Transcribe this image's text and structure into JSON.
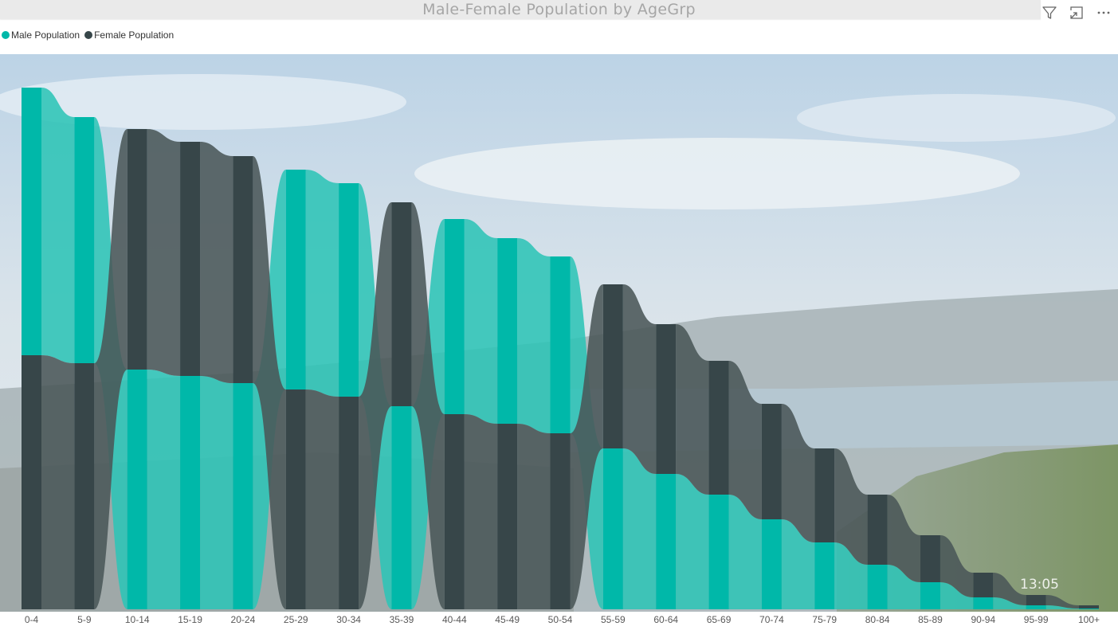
{
  "header": {
    "title": "Male-Female Population by AgeGrp",
    "icons": [
      "filter-icon",
      "focus-mode-icon",
      "more-options-icon"
    ]
  },
  "legend": {
    "items": [
      {
        "label": "Male Population",
        "color": "#00b8a9"
      },
      {
        "label": "Female Population",
        "color": "#374649"
      }
    ]
  },
  "colors": {
    "male": "#00b8a9",
    "female": "#374649",
    "male_ribbon": "#2ec4b6",
    "female_ribbon": "#4a5658"
  },
  "overlay_text": "13:05",
  "chart_data": {
    "type": "ribbon",
    "title": "Male-Female Population by AgeGrp",
    "xlabel": "",
    "ylabel": "",
    "stacked": true,
    "categories": [
      "0-4",
      "5-9",
      "10-14",
      "15-19",
      "20-24",
      "25-29",
      "30-34",
      "35-39",
      "40-44",
      "45-49",
      "50-54",
      "55-59",
      "60-64",
      "65-69",
      "70-74",
      "75-79",
      "80-84",
      "85-89",
      "90-94",
      "95-99",
      "100+"
    ],
    "series": [
      {
        "name": "Male Population",
        "values": [
          336,
          309,
          301,
          293,
          284,
          276,
          268,
          255,
          245,
          233,
          222,
          202,
          170,
          144,
          113,
          84,
          56,
          34,
          15,
          5,
          1
        ]
      },
      {
        "name": "Female Population",
        "values": [
          319,
          309,
          302,
          294,
          285,
          276,
          267,
          256,
          245,
          233,
          221,
          206,
          188,
          168,
          145,
          118,
          88,
          59,
          31,
          13,
          4
        ]
      }
    ],
    "ylim": [
      0,
      700
    ],
    "grid": false,
    "legend_position": "top-left"
  }
}
